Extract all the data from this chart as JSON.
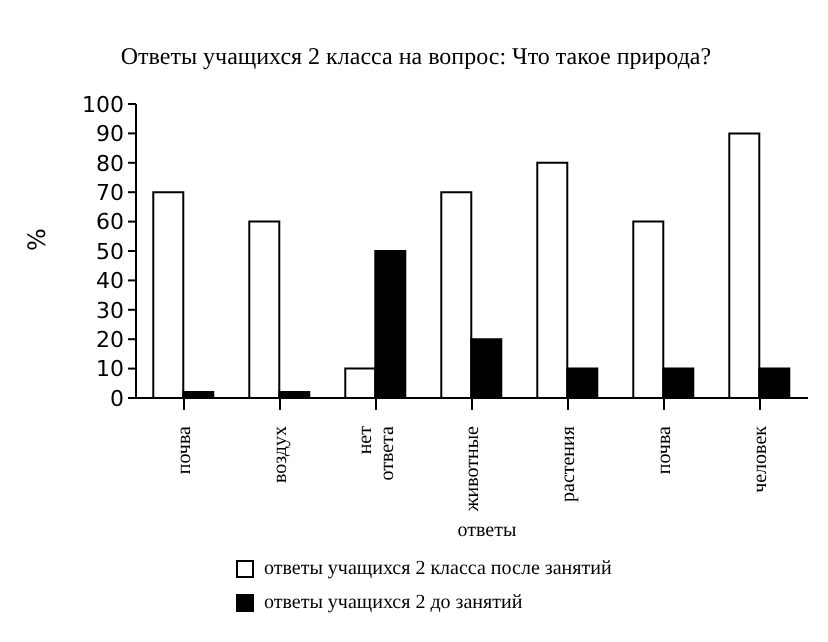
{
  "chart_data": {
    "type": "bar",
    "title": "Ответы учащихся 2 класса на вопрос: Что такое природа?",
    "xlabel": "ответы",
    "ylabel": "%",
    "categories": [
      "почва",
      "воздух",
      "нет ответа",
      "животные",
      "растения",
      "почва",
      "человек"
    ],
    "series": [
      {
        "name": "ответы учащихся 2 класса после занятий",
        "color": "#ffffff",
        "values": [
          70,
          60,
          10,
          70,
          80,
          60,
          90
        ]
      },
      {
        "name": "ответы учащихся 2 до занятий",
        "color": "#000000",
        "values": [
          2,
          2,
          50,
          20,
          10,
          10,
          10
        ]
      }
    ],
    "ylim": [
      0,
      100
    ],
    "yticks": [
      0,
      10,
      20,
      30,
      40,
      50,
      60,
      70,
      80,
      90,
      100
    ],
    "grid": false,
    "legend": "bottom"
  }
}
